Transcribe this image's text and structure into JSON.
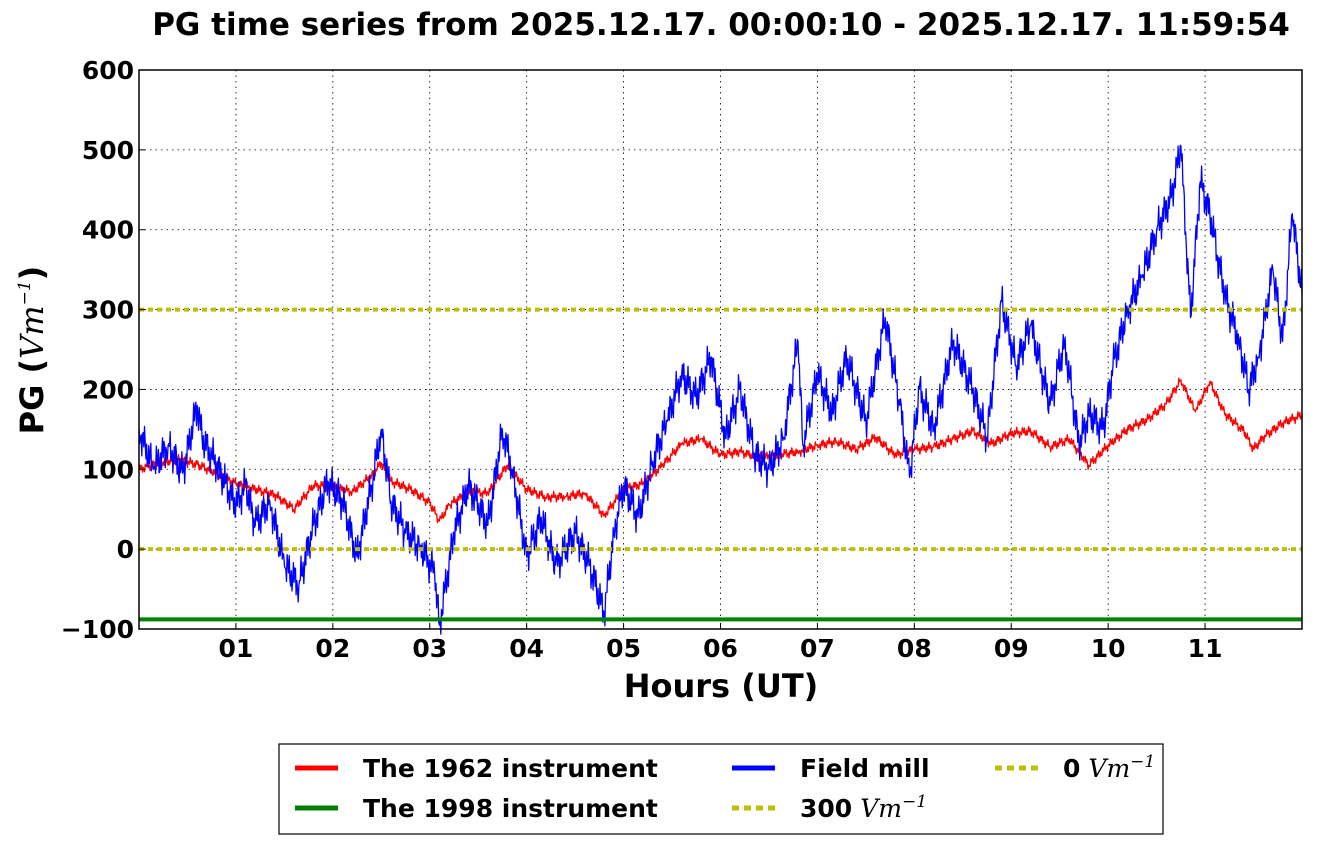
{
  "chart_data": {
    "type": "line",
    "title": "PG time series from 2025.12.17. 00:00:10 - 2025.12.17. 11:59:54",
    "xlabel": "Hours (UT)",
    "ylabel": {
      "text": "PG (",
      "unit": "Vm",
      "exp": "−1",
      "close": ")"
    },
    "xlim": [
      0,
      12
    ],
    "ylim": [
      -100,
      600
    ],
    "x_ticks": [
      {
        "value": 1,
        "label": "01"
      },
      {
        "value": 2,
        "label": "02"
      },
      {
        "value": 3,
        "label": "03"
      },
      {
        "value": 4,
        "label": "04"
      },
      {
        "value": 5,
        "label": "05"
      },
      {
        "value": 6,
        "label": "06"
      },
      {
        "value": 7,
        "label": "07"
      },
      {
        "value": 8,
        "label": "08"
      },
      {
        "value": 9,
        "label": "09"
      },
      {
        "value": 10,
        "label": "10"
      },
      {
        "value": 11,
        "label": "11"
      }
    ],
    "y_ticks": [
      {
        "value": -100,
        "label": "−100"
      },
      {
        "value": 0,
        "label": "0"
      },
      {
        "value": 100,
        "label": "100"
      },
      {
        "value": 200,
        "label": "200"
      },
      {
        "value": 300,
        "label": "300"
      },
      {
        "value": 400,
        "label": "400"
      },
      {
        "value": 500,
        "label": "500"
      },
      {
        "value": 600,
        "label": "600"
      }
    ],
    "grid": true,
    "legend_position": "bottom-center",
    "series": [
      {
        "name": "The 1962 instrument",
        "color": "#ff0000",
        "x": [
          0,
          0.2,
          0.4,
          0.6,
          0.8,
          1.0,
          1.2,
          1.4,
          1.6,
          1.8,
          2.0,
          2.2,
          2.4,
          2.5,
          2.6,
          2.8,
          3.0,
          3.1,
          3.2,
          3.4,
          3.6,
          3.8,
          4.0,
          4.2,
          4.4,
          4.6,
          4.8,
          5.0,
          5.2,
          5.4,
          5.6,
          5.8,
          6.0,
          6.2,
          6.4,
          6.6,
          6.8,
          7.0,
          7.2,
          7.4,
          7.6,
          7.8,
          8.0,
          8.2,
          8.4,
          8.6,
          8.8,
          9.0,
          9.2,
          9.4,
          9.6,
          9.8,
          10.0,
          10.2,
          10.4,
          10.6,
          10.75,
          10.9,
          11.05,
          11.2,
          11.4,
          11.5,
          11.6,
          11.8,
          12.0
        ],
        "y": [
          100,
          108,
          112,
          106,
          95,
          82,
          75,
          68,
          50,
          80,
          78,
          72,
          92,
          108,
          85,
          75,
          58,
          35,
          55,
          72,
          70,
          105,
          75,
          65,
          66,
          70,
          42,
          75,
          82,
          105,
          132,
          138,
          118,
          122,
          115,
          118,
          122,
          130,
          135,
          125,
          140,
          118,
          125,
          128,
          138,
          148,
          132,
          145,
          148,
          128,
          138,
          105,
          130,
          150,
          162,
          182,
          212,
          172,
          210,
          170,
          148,
          125,
          140,
          158,
          168
        ]
      },
      {
        "name": "The 1998 instrument",
        "color": "#008000",
        "x": [
          0,
          12
        ],
        "y": [
          -88,
          -88
        ]
      },
      {
        "name": "Field mill",
        "color": "#0000ff",
        "x": [
          0,
          0.15,
          0.3,
          0.45,
          0.6,
          0.65,
          0.8,
          1.0,
          1.1,
          1.2,
          1.35,
          1.5,
          1.65,
          1.8,
          1.95,
          2.1,
          2.25,
          2.4,
          2.5,
          2.6,
          2.75,
          2.9,
          3.05,
          3.1,
          3.25,
          3.4,
          3.6,
          3.75,
          3.85,
          4.0,
          4.15,
          4.3,
          4.5,
          4.65,
          4.8,
          4.9,
          5.0,
          5.15,
          5.3,
          5.45,
          5.6,
          5.75,
          5.9,
          6.05,
          6.2,
          6.35,
          6.5,
          6.65,
          6.8,
          6.85,
          7.0,
          7.15,
          7.3,
          7.5,
          7.7,
          7.85,
          7.95,
          8.05,
          8.2,
          8.4,
          8.6,
          8.75,
          8.9,
          9.05,
          9.2,
          9.4,
          9.55,
          9.7,
          9.8,
          9.95,
          10.05,
          10.2,
          10.35,
          10.5,
          10.65,
          10.75,
          10.85,
          10.95,
          11.05,
          11.2,
          11.35,
          11.45,
          11.55,
          11.7,
          11.8,
          11.9,
          12.0
        ],
        "y": [
          150,
          100,
          130,
          95,
          180,
          140,
          105,
          55,
          80,
          30,
          60,
          -20,
          -45,
          30,
          85,
          60,
          -10,
          80,
          150,
          60,
          20,
          5,
          -30,
          -95,
          20,
          80,
          30,
          150,
          100,
          -10,
          40,
          -20,
          20,
          -20,
          -80,
          20,
          80,
          40,
          110,
          160,
          220,
          190,
          240,
          140,
          200,
          120,
          100,
          140,
          260,
          130,
          220,
          170,
          240,
          160,
          290,
          180,
          90,
          200,
          150,
          260,
          200,
          140,
          310,
          230,
          280,
          180,
          260,
          130,
          170,
          150,
          230,
          300,
          340,
          400,
          440,
          505,
          290,
          460,
          420,
          320,
          260,
          200,
          240,
          350,
          260,
          420,
          320
        ]
      },
      {
        "name": "300",
        "legend_unit": "Vm",
        "legend_exp": "−1",
        "color": "#bfbf00",
        "dashed": true,
        "x": [
          0,
          12
        ],
        "y": [
          300,
          300
        ]
      },
      {
        "name": "0",
        "legend_unit": "Vm",
        "legend_exp": "−1",
        "color": "#bfbf00",
        "dashed": true,
        "x": [
          0,
          12
        ],
        "y": [
          0,
          0
        ]
      }
    ]
  }
}
